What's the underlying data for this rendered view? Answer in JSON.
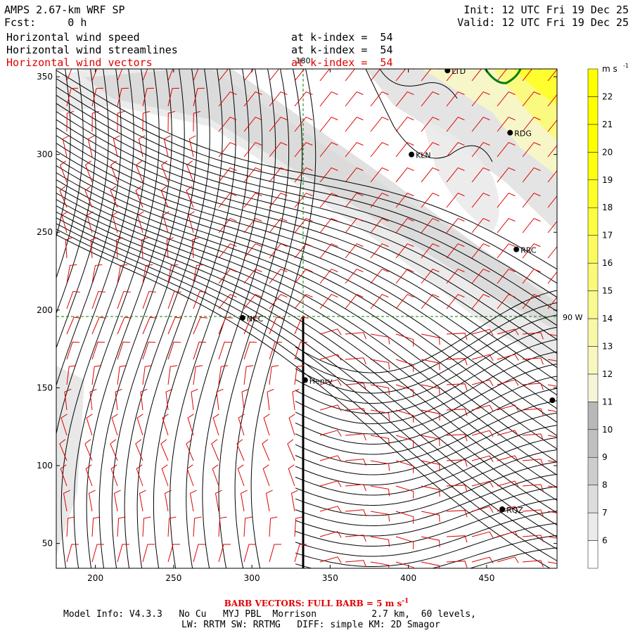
{
  "header": {
    "title": "AMPS 2.67-km WRF SP",
    "fcst": "Fcst:     0 h",
    "init": "Init: 12 UTC Fri 19 Dec 25",
    "valid": "Valid: 12 UTC Fri 19 Dec 25",
    "fields": [
      {
        "name": "Horizontal wind speed",
        "level": "at k-index =  54",
        "color": "#000000"
      },
      {
        "name": "Horizontal wind streamlines",
        "level": "at k-index =  54",
        "color": "#000000"
      },
      {
        "name": "Horizontal wind vectors",
        "level": "at k-index =  54",
        "color": "#e00000"
      }
    ]
  },
  "map": {
    "x_ticks": [
      "200",
      "250",
      "300",
      "350",
      "400",
      "450"
    ],
    "y_ticks": [
      "350",
      "300",
      "250",
      "200",
      "150",
      "100",
      "50"
    ],
    "xlim": [
      175,
      495
    ],
    "ylim": [
      34,
      355
    ],
    "meridian_label": "180",
    "latitude_label": "90 W",
    "stations": [
      {
        "name": "LTD",
        "x": 425,
        "y": 354
      },
      {
        "name": "RDG",
        "x": 465,
        "y": 314
      },
      {
        "name": "KLN",
        "x": 402,
        "y": 300
      },
      {
        "name": "RRC",
        "x": 469,
        "y": 239
      },
      {
        "name": "NCC",
        "x": 294,
        "y": 195
      },
      {
        "name": "Henry",
        "x": 334,
        "y": 155
      },
      {
        "name": "",
        "x": 492,
        "y": 142
      },
      {
        "name": "RQZ",
        "x": 460,
        "y": 72
      }
    ]
  },
  "colorbar": {
    "unit": "m s",
    "unit_exp": "-1",
    "levels": [
      "6",
      "7",
      "8",
      "9",
      "10",
      "11",
      "12",
      "13",
      "14",
      "15",
      "16",
      "17",
      "18",
      "19",
      "20",
      "21",
      "22"
    ],
    "colors": [
      "#ffffff",
      "#ebebeb",
      "#dcdcdc",
      "#cdcdcd",
      "#c0c0c0",
      "#b8b8b8",
      "#f5f5d8",
      "#f7f7c0",
      "#f8f8a8",
      "#f9f990",
      "#fafa78",
      "#fbfb60",
      "#fcfc40",
      "#fdfd28",
      "#fefe10",
      "#ffff00",
      "#ffff00"
    ]
  },
  "footer": {
    "barb_text": "BARB VECTORS:  FULL BARB = 5 m s",
    "barb_exp": "-1",
    "model_info": "Model Info: V4.3.3   No Cu   MYJ PBL  Morrison          2.7 km,  60 levels,",
    "physics": "LW: RRTM SW: RRTMG   DIFF: simple KM: 2D Smagor"
  }
}
